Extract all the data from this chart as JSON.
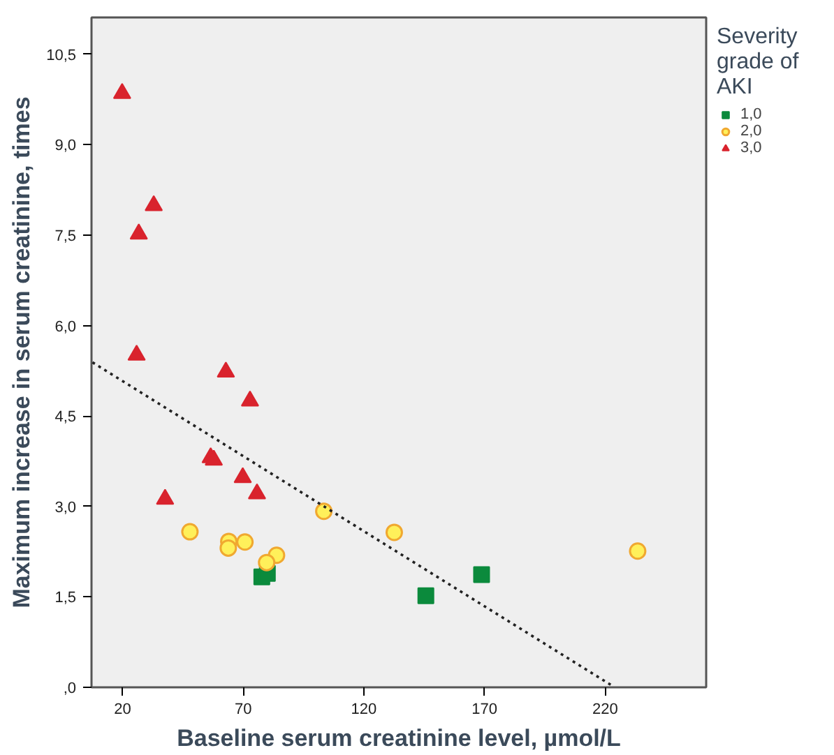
{
  "chart_data": {
    "type": "scatter",
    "xlabel": "Baseline serum creatinine level, µmol/L",
    "ylabel": "Maximum increase in serum creatinine, times",
    "legend_title": "Severity grade of AKI",
    "legend": "right",
    "grid": false,
    "xlim": [
      7.1,
      261.9
    ],
    "xticks": [
      20,
      70,
      120,
      170,
      220
    ],
    "ylim": [
      0,
      11.11
    ],
    "yticks": [
      {
        "value": 0,
        "label": ",0"
      },
      {
        "value": 1.5,
        "label": "1,5"
      },
      {
        "value": 3,
        "label": "3,0"
      },
      {
        "value": 4.5,
        "label": "4,5"
      },
      {
        "value": 6,
        "label": "6,0"
      },
      {
        "value": 7.5,
        "label": "7,5"
      },
      {
        "value": 9,
        "label": "9,0"
      },
      {
        "value": 10.5,
        "label": "10,5"
      }
    ],
    "series": [
      {
        "name": "1,0",
        "color": "#0b8a3c",
        "marker": "square",
        "x": [
          77.7,
          80.0,
          145.7,
          168.8
        ],
        "values": [
          1.83,
          1.89,
          1.52,
          1.87
        ]
      },
      {
        "name": "2,0",
        "color": "#fff05a",
        "marker": "circle",
        "x": [
          47.9,
          64.0,
          63.8,
          70.7,
          103.4,
          83.8,
          79.7,
          132.6,
          233.5
        ],
        "values": [
          2.58,
          2.42,
          2.31,
          2.41,
          2.92,
          2.19,
          2.07,
          2.57,
          2.26
        ]
      },
      {
        "name": "3,0",
        "color": "#d9232d",
        "marker": "triangle",
        "x": [
          19.8,
          32.9,
          26.7,
          25.8,
          62.8,
          72.8,
          56.5,
          57.8,
          69.8,
          37.6,
          75.7
        ],
        "values": [
          9.85,
          7.99,
          7.52,
          5.51,
          5.23,
          4.75,
          3.81,
          3.77,
          3.48,
          3.12,
          3.21
        ]
      },
      {
        "type": "line",
        "color": "#222222",
        "line_style": "dotted",
        "x": [
          7.5,
          223.2
        ],
        "values": [
          5.39,
          0.02
        ]
      }
    ]
  }
}
